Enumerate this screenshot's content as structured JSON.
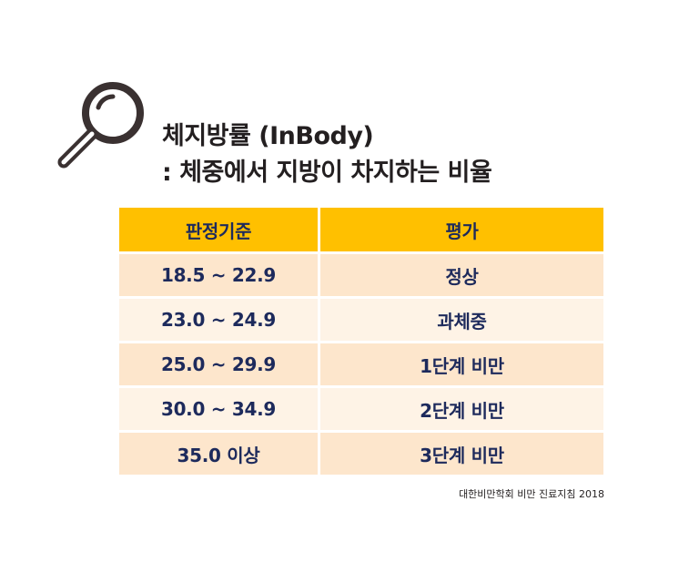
{
  "icon": "magnifying-glass-icon",
  "title": {
    "line1": "체지방률 (InBody)",
    "line2": ": 체중에서 지방이 차지하는 비율"
  },
  "table": {
    "headers": [
      "판정기준",
      "평가"
    ],
    "rows": [
      [
        "18.5 ~ 22.9",
        "정상"
      ],
      [
        "23.0 ~ 24.9",
        "과체중"
      ],
      [
        "25.0 ~ 29.9",
        "1단계 비만"
      ],
      [
        "30.0 ~ 34.9",
        "2단계 비만"
      ],
      [
        "35.0 이상",
        "3단계 비만"
      ]
    ]
  },
  "source": "대한비만학회 비만 진료지침 2018",
  "colors": {
    "header_bg": "#ffc000",
    "row_odd_bg": "#fde6cc",
    "row_even_bg": "#fef3e6",
    "text": "#1d2a5c",
    "icon": "#3a3131"
  }
}
